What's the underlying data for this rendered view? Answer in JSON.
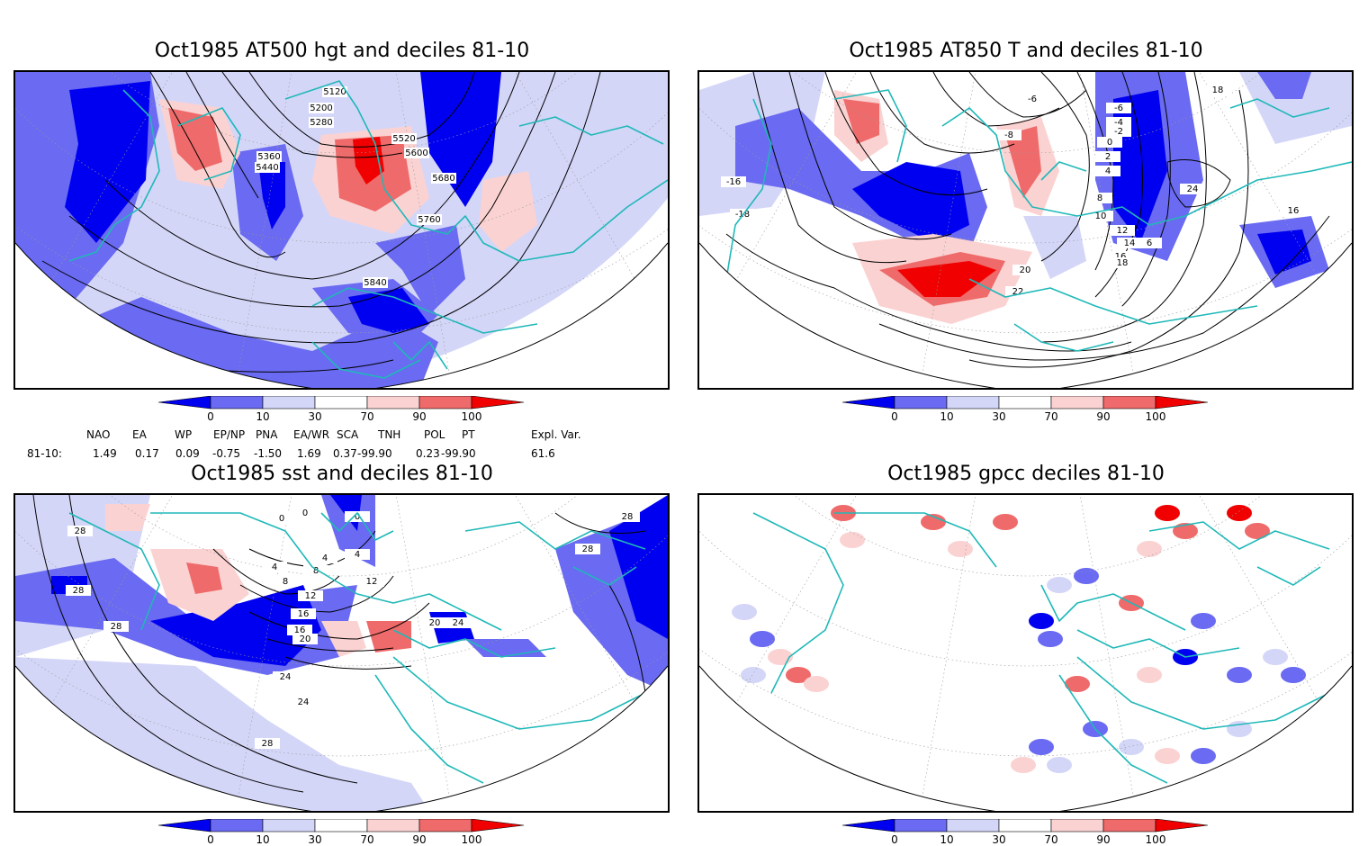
{
  "panels": [
    {
      "title": "Oct1985 AT500 hgt and deciles 81-10",
      "contour_labels": [
        "5120",
        "5200",
        "5280",
        "5360",
        "5440",
        "5520",
        "5600",
        "5680",
        "5760",
        "5840"
      ]
    },
    {
      "title": "Oct1985 AT850 T and deciles 81-10",
      "contour_labels": [
        "-6",
        "-4",
        "-2",
        "0",
        "2",
        "4",
        "-8",
        "8",
        "10",
        "12",
        "14",
        "16",
        "18",
        "20",
        "22",
        "24",
        "16",
        "18",
        "-16",
        "-18",
        "6",
        "-6"
      ]
    },
    {
      "title": "Oct1985 sst and deciles 81-10",
      "contour_labels": [
        "0",
        "0",
        "4",
        "4",
        "8",
        "12",
        "16",
        "20",
        "24",
        "24",
        "28",
        "28",
        "28",
        "28",
        "8",
        "12",
        "16",
        "20",
        "24",
        "4",
        "0",
        "28",
        "28"
      ]
    },
    {
      "title": "Oct1985 gpcc deciles 81-10",
      "contour_labels": []
    }
  ],
  "colorbar": {
    "tick_labels": [
      "0",
      "10",
      "30",
      "70",
      "90",
      "100"
    ],
    "colors": [
      "#0000f0",
      "#6a6af2",
      "#d4d6f8",
      "#ffffff",
      "#fbd2d2",
      "#ef6a6a",
      "#f00000"
    ]
  },
  "indices": {
    "header": [
      "NAO",
      "EA",
      "WP",
      "EP/NP",
      "PNA",
      "EA/WR",
      "SCA",
      "TNH",
      "POL",
      "PT",
      "Expl. Var."
    ],
    "row_label": "81-10:",
    "values": [
      "1.49",
      "0.17",
      "0.09",
      "-0.75",
      "-1.50",
      "1.69",
      "0.37",
      "-99.90",
      "0.23",
      "-99.90",
      "61.6"
    ]
  },
  "colors": {
    "coastline": "#20b8b8",
    "contour": "#000000",
    "grid": "#9a9a9a"
  }
}
